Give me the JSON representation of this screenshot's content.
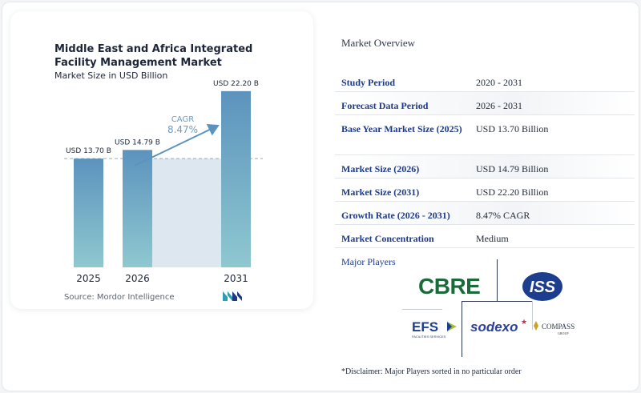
{
  "chart_data": {
    "type": "bar",
    "title": "Middle East and Africa Integrated Facility Management Market",
    "subtitle": "Market Size in USD Billion",
    "categories": [
      "2025",
      "2026",
      "2031"
    ],
    "values": [
      13.7,
      14.79,
      22.2
    ],
    "value_labels": [
      "USD 13.70 B",
      "USD 14.79 B",
      "USD 22.20 B"
    ],
    "ylim": [
      0,
      24
    ],
    "cagr_label": "CAGR",
    "cagr_value": "8.47%",
    "reference_line_value": 13.7,
    "colors": {
      "bar_top": "#5c93be",
      "bar_bottom": "#8fc8d0",
      "shade": "#dde7f0",
      "arrow": "#5c93be",
      "cagr_text": "#6b9cc4"
    }
  },
  "source": "Source: Mordor Intelligence",
  "overview": {
    "title": "Market Overview",
    "rows": [
      {
        "key": "Study Period",
        "value": "2020 - 2031"
      },
      {
        "key": "Forecast Data Period",
        "value": "2026 - 2031"
      },
      {
        "key": "Base Year Market Size (2025)",
        "value": "USD 13.70 Billion"
      },
      {
        "key": "Market Size (2026)",
        "value": "USD 14.79 Billion"
      },
      {
        "key": "Market Size (2031)",
        "value": "USD 22.20 Billion"
      },
      {
        "key": "Growth Rate (2026 - 2031)",
        "value": "8.47% CAGR"
      },
      {
        "key": "Market Concentration",
        "value": "Medium"
      }
    ]
  },
  "players": {
    "title": "Major Players",
    "logos": [
      "CBRE",
      "ISS",
      "EFS",
      "sodexo",
      "COMPASS"
    ],
    "efs_sub": "FACILITIES SERVICES",
    "compass_sub": "GROUP"
  },
  "disclaimer": "*Disclaimer: Major Players sorted in no particular order"
}
